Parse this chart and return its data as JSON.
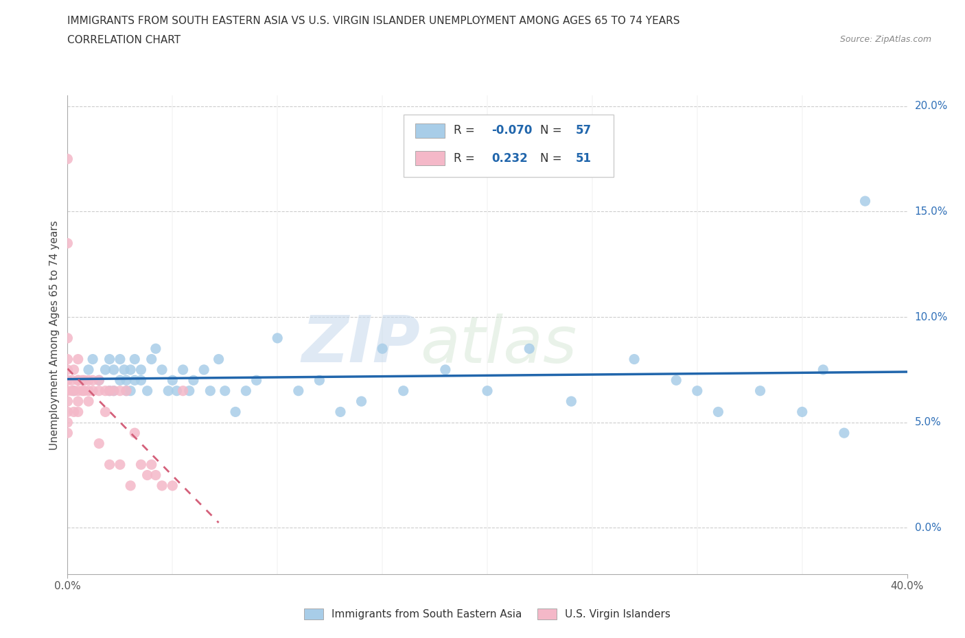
{
  "title_line1": "IMMIGRANTS FROM SOUTH EASTERN ASIA VS U.S. VIRGIN ISLANDER UNEMPLOYMENT AMONG AGES 65 TO 74 YEARS",
  "title_line2": "CORRELATION CHART",
  "source_text": "Source: ZipAtlas.com",
  "ylabel": "Unemployment Among Ages 65 to 74 years",
  "xlim": [
    0.0,
    0.4
  ],
  "ylim": [
    -0.022,
    0.205
  ],
  "ytick_right": [
    0.0,
    0.05,
    0.1,
    0.15,
    0.2
  ],
  "ytick_right_labels": [
    "0.0%",
    "5.0%",
    "10.0%",
    "15.0%",
    "20.0%"
  ],
  "blue_color": "#a8cde8",
  "pink_color": "#f4b8c8",
  "trend_blue_color": "#2166ac",
  "trend_pink_color": "#d4607a",
  "legend_R_blue": "-0.070",
  "legend_N_blue": "57",
  "legend_R_pink": "0.232",
  "legend_N_pink": "51",
  "watermark_zip": "ZIP",
  "watermark_atlas": "atlas",
  "grid_color": "#cccccc",
  "background_color": "#ffffff",
  "blue_x": [
    0.003,
    0.01,
    0.012,
    0.015,
    0.018,
    0.02,
    0.02,
    0.022,
    0.022,
    0.025,
    0.025,
    0.027,
    0.028,
    0.028,
    0.03,
    0.03,
    0.032,
    0.032,
    0.035,
    0.035,
    0.038,
    0.04,
    0.042,
    0.045,
    0.048,
    0.05,
    0.052,
    0.055,
    0.058,
    0.06,
    0.065,
    0.068,
    0.072,
    0.075,
    0.08,
    0.085,
    0.09,
    0.1,
    0.11,
    0.12,
    0.13,
    0.14,
    0.15,
    0.16,
    0.18,
    0.2,
    0.22,
    0.24,
    0.27,
    0.29,
    0.3,
    0.31,
    0.33,
    0.35,
    0.36,
    0.37,
    0.38
  ],
  "blue_y": [
    0.065,
    0.075,
    0.08,
    0.07,
    0.075,
    0.065,
    0.08,
    0.075,
    0.065,
    0.07,
    0.08,
    0.075,
    0.065,
    0.07,
    0.075,
    0.065,
    0.07,
    0.08,
    0.075,
    0.07,
    0.065,
    0.08,
    0.085,
    0.075,
    0.065,
    0.07,
    0.065,
    0.075,
    0.065,
    0.07,
    0.075,
    0.065,
    0.08,
    0.065,
    0.055,
    0.065,
    0.07,
    0.09,
    0.065,
    0.07,
    0.055,
    0.06,
    0.085,
    0.065,
    0.075,
    0.065,
    0.085,
    0.06,
    0.08,
    0.07,
    0.065,
    0.055,
    0.065,
    0.055,
    0.075,
    0.045,
    0.155
  ],
  "pink_x": [
    0.0,
    0.0,
    0.0,
    0.0,
    0.0,
    0.0,
    0.0,
    0.0,
    0.0,
    0.0,
    0.0,
    0.002,
    0.002,
    0.003,
    0.003,
    0.003,
    0.005,
    0.005,
    0.005,
    0.005,
    0.005,
    0.005,
    0.007,
    0.007,
    0.008,
    0.008,
    0.01,
    0.01,
    0.01,
    0.012,
    0.012,
    0.015,
    0.015,
    0.015,
    0.018,
    0.018,
    0.02,
    0.02,
    0.022,
    0.025,
    0.025,
    0.028,
    0.03,
    0.032,
    0.035,
    0.038,
    0.04,
    0.042,
    0.045,
    0.05,
    0.055
  ],
  "pink_y": [
    0.07,
    0.075,
    0.06,
    0.065,
    0.055,
    0.05,
    0.045,
    0.08,
    0.09,
    0.135,
    0.175,
    0.065,
    0.07,
    0.065,
    0.055,
    0.075,
    0.065,
    0.07,
    0.06,
    0.055,
    0.08,
    0.07,
    0.065,
    0.07,
    0.065,
    0.07,
    0.065,
    0.07,
    0.06,
    0.065,
    0.07,
    0.065,
    0.07,
    0.04,
    0.065,
    0.055,
    0.065,
    0.03,
    0.065,
    0.065,
    0.03,
    0.065,
    0.02,
    0.045,
    0.03,
    0.025,
    0.03,
    0.025,
    0.02,
    0.02,
    0.065
  ],
  "pink_trend_x_start": 0.0,
  "pink_trend_x_end": 0.072,
  "blue_trend_x_start": 0.0,
  "blue_trend_x_end": 0.4
}
